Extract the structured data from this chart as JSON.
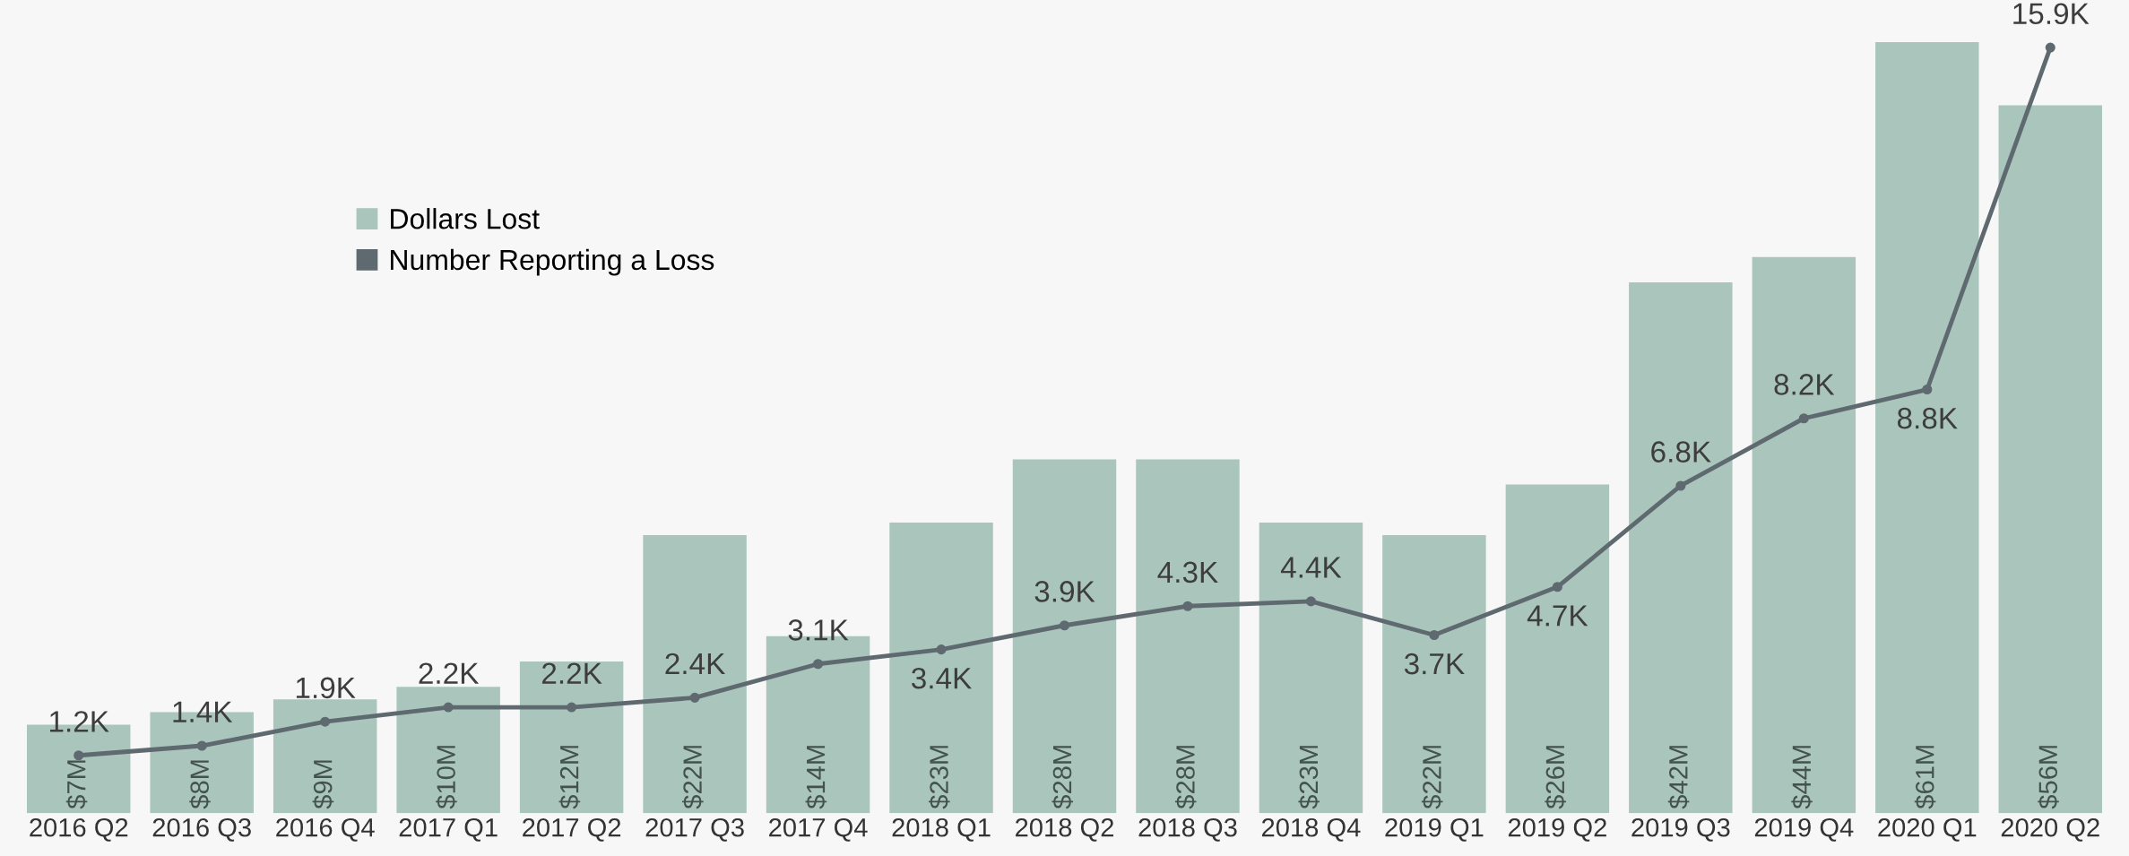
{
  "chart_data": {
    "type": "bar",
    "categories": [
      "2016 Q2",
      "2016 Q3",
      "2016 Q4",
      "2017 Q1",
      "2017 Q2",
      "2017 Q3",
      "2017 Q4",
      "2018 Q1",
      "2018 Q2",
      "2018 Q3",
      "2018 Q4",
      "2019 Q1",
      "2019 Q2",
      "2019 Q3",
      "2019 Q4",
      "2020 Q1",
      "2020 Q2"
    ],
    "series": [
      {
        "name": "Dollars Lost",
        "color": "#aac6bc",
        "values": [
          7,
          8,
          9,
          10,
          12,
          22,
          14,
          23,
          28,
          28,
          23,
          22,
          26,
          42,
          44,
          61,
          56
        ],
        "value_labels": [
          "$7M",
          "$8M",
          "$9M",
          "$10M",
          "$12M",
          "$22M",
          "$14M",
          "$23M",
          "$28M",
          "$28M",
          "$23M",
          "$22M",
          "$26M",
          "$42M",
          "$44M",
          "$61M",
          "$56M"
        ]
      },
      {
        "name": "Number Reporting a Loss",
        "type": "line",
        "axis": "y2",
        "color": "#5f6a70",
        "values": [
          1.2,
          1.4,
          1.9,
          2.2,
          2.2,
          2.4,
          3.1,
          3.4,
          3.9,
          4.3,
          4.4,
          3.7,
          4.7,
          6.8,
          8.2,
          8.8,
          15.9
        ],
        "value_labels": [
          "1.2K",
          "1.4K",
          "1.9K",
          "2.2K",
          "2.2K",
          "2.4K",
          "3.1K",
          "3.4K",
          "3.9K",
          "4.3K",
          "4.4K",
          "3.7K",
          "4.7K",
          "6.8K",
          "8.2K",
          "8.8K",
          "15.9K"
        ]
      }
    ],
    "ylim": [
      0,
      64
    ],
    "y2lim": [
      0,
      16.8
    ],
    "tick_labels": "x",
    "legend": "top left",
    "grid": false,
    "marker": "circle",
    "line_style": "solid"
  }
}
